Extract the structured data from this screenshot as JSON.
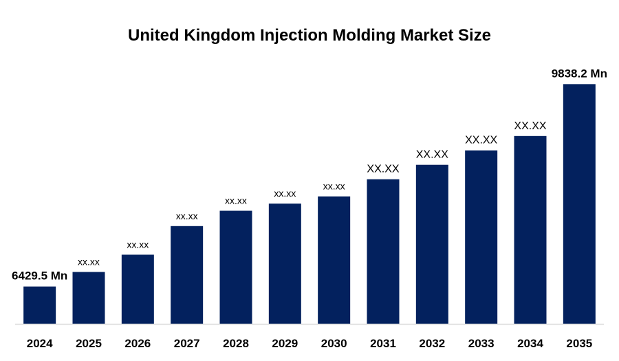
{
  "chart_data": {
    "type": "bar",
    "title": "United Kingdom Injection Molding Market Size",
    "xlabel": "",
    "ylabel": "",
    "categories": [
      "2024",
      "2025",
      "2026",
      "2027",
      "2028",
      "2029",
      "2030",
      "2031",
      "2032",
      "2033",
      "2034",
      "2035"
    ],
    "values": [
      6429.5,
      6674,
      6965,
      7447,
      7705,
      7826,
      7947,
      8236,
      8479,
      8722,
      8964,
      9838.2
    ],
    "data_labels": [
      "6429.5 Mn",
      "xx.xx",
      "xx.xx",
      "xx.xx",
      "xx.xx",
      "xx.xx",
      "xx.xx",
      "XX.XX",
      "XX.XX",
      "XX.XX",
      "XX.XX",
      "9838.2 Mn"
    ],
    "ylim": [
      5800,
      9900
    ],
    "grid": false,
    "legend": "none",
    "bar_color": "#03215E",
    "axis_color": "#d9d9d9"
  }
}
